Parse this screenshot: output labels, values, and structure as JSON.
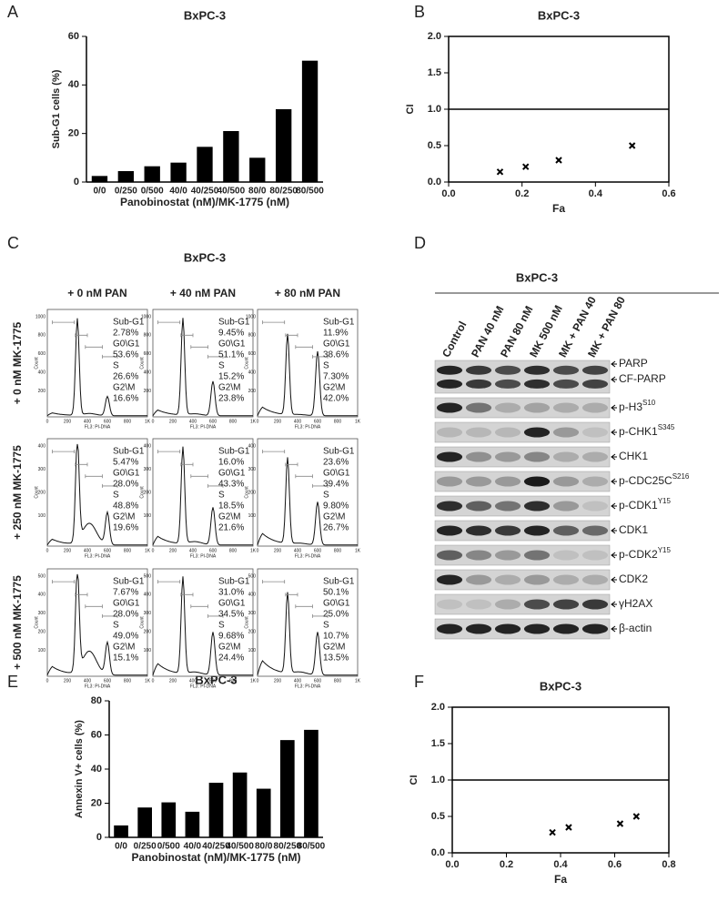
{
  "panel_labels": [
    "A",
    "B",
    "C",
    "D",
    "E",
    "F"
  ],
  "chart_data": [
    {
      "type": "bar",
      "title": "BxPC-3",
      "ylabel": "Sub-G1 cells (%)",
      "xlabel": "Panobinostat (nM)/MK-1775 (nM)",
      "categories": [
        "0/0",
        "0/250",
        "0/500",
        "40/0",
        "40/250",
        "40/500",
        "80/0",
        "80/250",
        "80/500"
      ],
      "values": [
        2.5,
        4.5,
        6.5,
        8,
        14.5,
        21,
        10,
        30,
        50
      ],
      "color": "#000000",
      "ylim": [
        0,
        60
      ],
      "yticks": [
        0,
        20,
        40,
        60
      ]
    },
    {
      "type": "scatter",
      "title": "BxPC-3",
      "ylabel": "CI",
      "xlabel": "Fa",
      "x": [
        0.14,
        0.21,
        0.3,
        0.5
      ],
      "values": [
        0.14,
        0.21,
        0.3,
        0.5
      ],
      "color": "#000000",
      "xlim": [
        0,
        0.6
      ],
      "xticks": [
        {
          "value": 0,
          "label": "0.0"
        },
        0.2,
        0.4,
        0.6
      ],
      "ylim": [
        0,
        2
      ],
      "yticks": [
        {
          "value": 0,
          "label": "0.0"
        },
        0.5,
        {
          "value": 1,
          "label": "1.0"
        },
        1.5,
        {
          "value": 2,
          "label": "2.0"
        }
      ],
      "reference_line": 1
    },
    {
      "type": "bar",
      "title": "BxPC-3",
      "ylabel": "Annexin V+ cells (%)",
      "xlabel": "Panobinostat (nM)/MK-1775 (nM)",
      "categories": [
        "0/0",
        "0/250",
        "0/500",
        "40/0",
        "40/250",
        "40/500",
        "80/0",
        "80/250",
        "80/500"
      ],
      "values": [
        7,
        17.5,
        20.5,
        15,
        32,
        38,
        28.5,
        57,
        63
      ],
      "color": "#000000",
      "ylim": [
        0,
        80
      ],
      "yticks": [
        0,
        20,
        40,
        60,
        80
      ]
    },
    {
      "type": "scatter",
      "title": "BxPC-3",
      "ylabel": "CI",
      "xlabel": "Fa",
      "x": [
        0.37,
        0.43,
        0.62,
        0.68
      ],
      "values": [
        0.28,
        0.35,
        0.4,
        0.5
      ],
      "color": "#000000",
      "xlim": [
        0,
        0.8
      ],
      "xticks": [
        {
          "value": 0,
          "label": "0.0"
        },
        0.2,
        0.4,
        0.6,
        0.8
      ],
      "ylim": [
        0,
        2
      ],
      "yticks": [
        {
          "value": 0,
          "label": "0.0"
        },
        0.5,
        {
          "value": 1,
          "label": "1.0"
        },
        1.5,
        {
          "value": 2,
          "label": "2.0"
        }
      ],
      "reference_line": 1
    }
  ],
  "flow": {
    "title": "BxPC-3",
    "columns": [
      "+ 0 nM PAN",
      "+ 40 nM PAN",
      "+ 80 nM PAN"
    ],
    "rows": [
      "+ 0 nM MK-1775",
      "+ 250 nM MK-1775",
      "+ 500 nM MK-1775"
    ],
    "ylabel": "Count",
    "xlabel": "FL3: PI-DNA",
    "xticks": [
      "0",
      "200",
      "400",
      "600",
      "800",
      "1K"
    ],
    "row_yticks": [
      [
        "1000",
        "800",
        "600",
        "400",
        "200"
      ],
      [
        "400",
        "300",
        "200",
        "100"
      ],
      [
        "500",
        "400",
        "300",
        "200",
        "100"
      ]
    ],
    "cells": [
      [
        [
          "Sub-G1",
          "2.78%",
          "G0\\G1",
          "53.6%",
          "S",
          "26.6%",
          "G2\\M",
          "16.6%"
        ],
        [
          "Sub-G1",
          "9.45%",
          "G0\\G1",
          "51.1%",
          "S",
          "15.2%",
          "G2\\M",
          "23.8%"
        ],
        [
          "Sub-G1",
          "11.9%",
          "G0\\G1",
          "38.6%",
          "S",
          "7.30%",
          "G2\\M",
          "42.0%"
        ]
      ],
      [
        [
          "Sub-G1",
          "5.47%",
          "G0\\G1",
          "28.0%",
          "S",
          "48.8%",
          "G2\\M",
          "19.6%"
        ],
        [
          "Sub-G1",
          "16.0%",
          "G0\\G1",
          "43.3%",
          "S",
          "18.5%",
          "G2\\M",
          "21.6%"
        ],
        [
          "Sub-G1",
          "23.6%",
          "G0\\G1",
          "39.4%",
          "S",
          "9.80%",
          "G2\\M",
          "26.7%"
        ]
      ],
      [
        [
          "Sub-G1",
          "7.67%",
          "G0\\G1",
          "28.0%",
          "S",
          "49.0%",
          "G2\\M",
          "15.1%"
        ],
        [
          "Sub-G1",
          "31.0%",
          "G0\\G1",
          "34.5%",
          "S",
          "9.68%",
          "G2\\M",
          "24.4%"
        ],
        [
          "Sub-G1",
          "50.1%",
          "G0\\G1",
          "25.0%",
          "S",
          "10.7%",
          "G2\\M",
          "13.5%"
        ]
      ]
    ]
  },
  "blot": {
    "title": "BxPC-3",
    "lanes": [
      "Control",
      "PAN 40 nM",
      "PAN 80 nM",
      "MK 500 nM",
      "MK + PAN 40",
      "MK + PAN 80"
    ],
    "bands": [
      {
        "labels": [
          {
            "text": "PARP"
          },
          {
            "text": "CF-PARP"
          }
        ]
      },
      {
        "labels": [
          {
            "text": "p-H3",
            "sup": "S10"
          }
        ]
      },
      {
        "labels": [
          {
            "text": "p-CHK1",
            "sup": "S345"
          }
        ]
      },
      {
        "labels": [
          {
            "text": "CHK1"
          }
        ]
      },
      {
        "labels": [
          {
            "text": "p-CDC25C",
            "sup": "S216"
          }
        ]
      },
      {
        "labels": [
          {
            "text": "p-CDK1",
            "sup": "Y15"
          }
        ]
      },
      {
        "labels": [
          {
            "text": "CDK1"
          }
        ]
      },
      {
        "labels": [
          {
            "text": "p-CDK2",
            "sup": "Y15"
          }
        ]
      },
      {
        "labels": [
          {
            "text": "CDK2"
          }
        ]
      },
      {
        "labels": [
          {
            "text": "γH2AX"
          }
        ]
      },
      {
        "labels": [
          {
            "text": "β-actin"
          }
        ]
      }
    ]
  }
}
